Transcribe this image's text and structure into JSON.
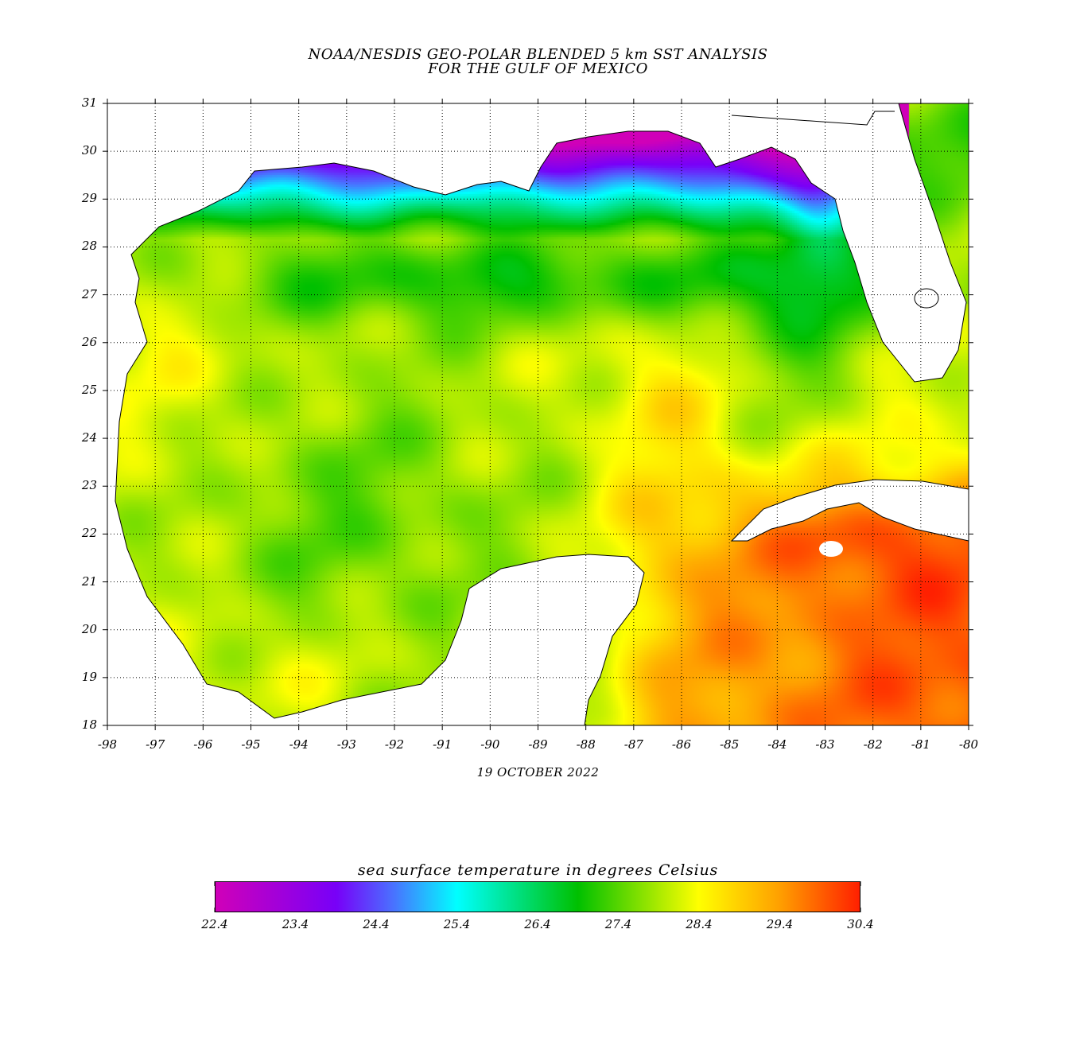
{
  "header": {
    "title_line1": "NOAA/NESDIS GEO-POLAR BLENDED 5 km SST ANALYSIS",
    "title_line2": "FOR THE GULF OF MEXICO"
  },
  "date_label": "19 OCTOBER 2022",
  "map": {
    "lon_range": [
      -98,
      -80
    ],
    "lat_range": [
      18,
      31
    ],
    "lon_ticks": [
      "-98",
      "-97",
      "-96",
      "-95",
      "-94",
      "-93",
      "-92",
      "-91",
      "-90",
      "-89",
      "-88",
      "-87",
      "-86",
      "-85",
      "-84",
      "-83",
      "-82",
      "-81",
      "-80"
    ],
    "lat_ticks": [
      "31",
      "30",
      "29",
      "28",
      "27",
      "26",
      "25",
      "24",
      "23",
      "22",
      "21",
      "20",
      "19",
      "18"
    ],
    "grid": "dotted",
    "land_color": "#ffffff",
    "coast_color": "#000000"
  },
  "colorbar": {
    "label": "sea surface temperature in degrees Celsius",
    "range": [
      22.4,
      30.4
    ],
    "tick_labels": [
      "22.4",
      "23.4",
      "24.4",
      "25.4",
      "26.4",
      "27.4",
      "28.4",
      "29.4",
      "30.4"
    ],
    "colorscale": [
      {
        "value": 22.4,
        "color": "#d000b8"
      },
      {
        "value": 23.9,
        "color": "#7800f8"
      },
      {
        "value": 24.6,
        "color": "#4a70ff"
      },
      {
        "value": 25.4,
        "color": "#00ffff"
      },
      {
        "value": 26.9,
        "color": "#00c000"
      },
      {
        "value": 28.4,
        "color": "#ffff00"
      },
      {
        "value": 29.4,
        "color": "#ffa000"
      },
      {
        "value": 30.4,
        "color": "#ff2000"
      }
    ]
  }
}
